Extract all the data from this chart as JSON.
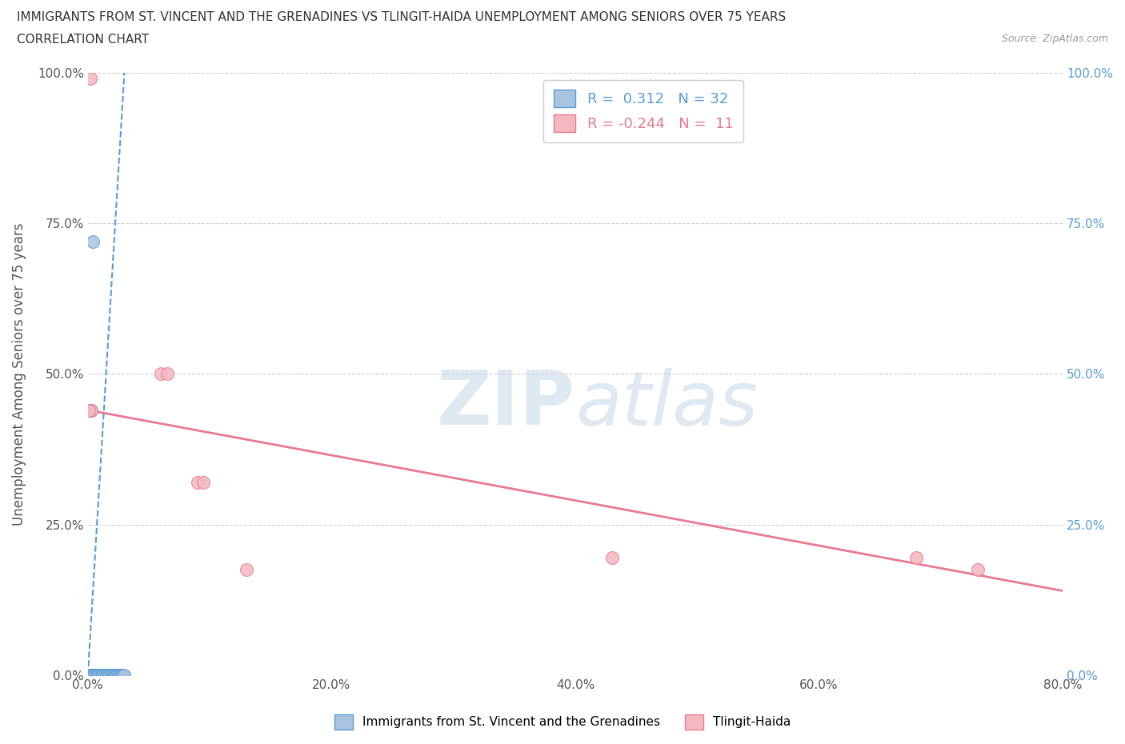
{
  "title_line1": "IMMIGRANTS FROM ST. VINCENT AND THE GRENADINES VS TLINGIT-HAIDA UNEMPLOYMENT AMONG SENIORS OVER 75 YEARS",
  "title_line2": "CORRELATION CHART",
  "source_text": "Source: ZipAtlas.com",
  "ylabel": "Unemployment Among Seniors over 75 years",
  "xlim": [
    0,
    0.8
  ],
  "ylim": [
    0,
    1.0
  ],
  "xticks": [
    0.0,
    0.2,
    0.4,
    0.6,
    0.8
  ],
  "yticks": [
    0.0,
    0.25,
    0.5,
    0.75,
    1.0
  ],
  "xticklabels": [
    "0.0%",
    "20.0%",
    "40.0%",
    "60.0%",
    "80.0%"
  ],
  "yticklabels": [
    "0.0%",
    "25.0%",
    "50.0%",
    "75.0%",
    "100.0%"
  ],
  "right_yticklabels": [
    "0.0%",
    "25.0%",
    "50.0%",
    "75.0%",
    "100.0%"
  ],
  "blue_R": 0.312,
  "blue_N": 32,
  "pink_R": -0.244,
  "pink_N": 11,
  "blue_color": "#a8c4e0",
  "blue_edge_color": "#5b9bd5",
  "blue_line_color": "#5b9bd5",
  "pink_color": "#f4b8c1",
  "pink_edge_color": "#e87a90",
  "pink_line_color": "#e87a90",
  "blue_scatter_x": [
    0.001,
    0.002,
    0.003,
    0.004,
    0.005,
    0.006,
    0.007,
    0.008,
    0.009,
    0.01,
    0.011,
    0.012,
    0.013,
    0.014,
    0.015,
    0.016,
    0.017,
    0.018,
    0.019,
    0.02,
    0.021,
    0.022,
    0.023,
    0.024,
    0.025,
    0.026,
    0.027,
    0.028,
    0.029,
    0.03,
    0.004,
    0.003
  ],
  "blue_scatter_y": [
    0.0,
    0.0,
    0.0,
    0.0,
    0.0,
    0.0,
    0.0,
    0.0,
    0.0,
    0.0,
    0.0,
    0.0,
    0.0,
    0.0,
    0.0,
    0.0,
    0.0,
    0.0,
    0.0,
    0.0,
    0.0,
    0.0,
    0.0,
    0.0,
    0.0,
    0.0,
    0.0,
    0.0,
    0.0,
    0.0,
    0.72,
    0.44
  ],
  "pink_scatter_x": [
    0.002,
    0.003,
    0.06,
    0.065,
    0.09,
    0.095,
    0.13,
    0.43,
    0.68,
    0.73,
    0.001
  ],
  "pink_scatter_y": [
    0.99,
    0.44,
    0.5,
    0.5,
    0.32,
    0.32,
    0.175,
    0.195,
    0.195,
    0.175,
    0.44
  ],
  "blue_trend_x": [
    0.001,
    0.03
  ],
  "blue_trend_y0": 0.0,
  "blue_trend_slope": 30.0,
  "pink_trend_x0": 0.0,
  "pink_trend_y0": 0.44,
  "pink_trend_x1": 0.8,
  "pink_trend_y1": 0.14,
  "background_color": "#ffffff",
  "grid_color": "#cccccc",
  "watermark_text": "ZIPatlas",
  "watermark_color": "#c8d8e8",
  "legend_label_blue": "R =  0.312   N = 32",
  "legend_label_pink": "R = -0.244   N =  11",
  "bottom_label_blue": "Immigrants from St. Vincent and the Grenadines",
  "bottom_label_pink": "Tlingit-Haida"
}
